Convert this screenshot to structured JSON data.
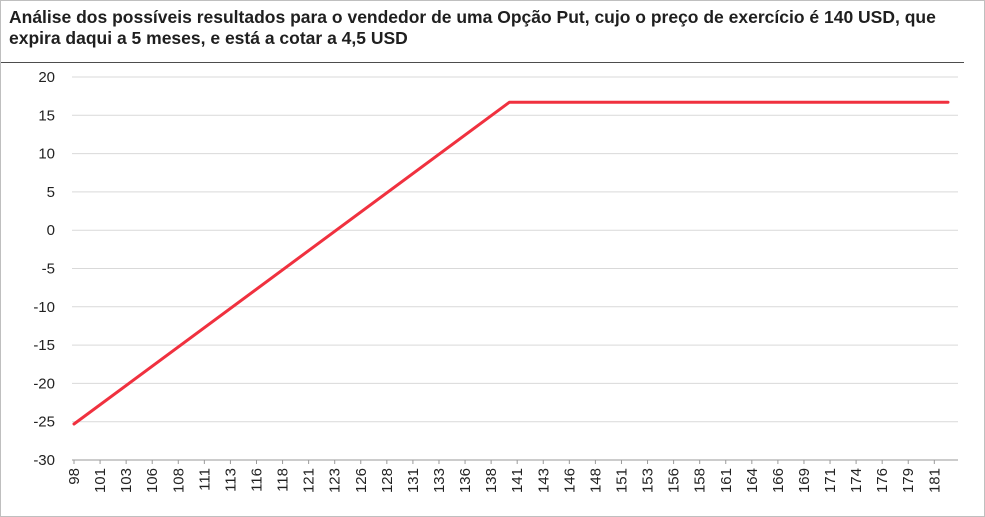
{
  "chart_data": {
    "type": "line",
    "title": "Análise  dos possíveis resultados para o vendedor de uma Opção Put, cujo o preço de exercício é 140 USD, que expira daqui a 5 meses, e está a cotar a 4,5 USD",
    "xlabel": "",
    "ylabel": "",
    "ylim": [
      -30,
      20
    ],
    "yticks": [
      20,
      15,
      10,
      5,
      0,
      -5,
      -10,
      -15,
      -20,
      -25,
      -30
    ],
    "xlim": [
      98,
      183
    ],
    "xtick_labels": [
      "98",
      "101",
      "103",
      "106",
      "108",
      "111",
      "113",
      "116",
      "118",
      "121",
      "123",
      "126",
      "128",
      "131",
      "133",
      "136",
      "138",
      "141",
      "143",
      "146",
      "148",
      "151",
      "153",
      "156",
      "158",
      "161",
      "164",
      "166",
      "169",
      "171",
      "174",
      "176",
      "179",
      "181"
    ],
    "grid": "horizontal",
    "legend": "none",
    "series": [
      {
        "color": "#f0313f",
        "x": [
          98,
          140,
          183
        ],
        "y": [
          -25.3,
          16.7,
          16.7
        ]
      }
    ]
  }
}
